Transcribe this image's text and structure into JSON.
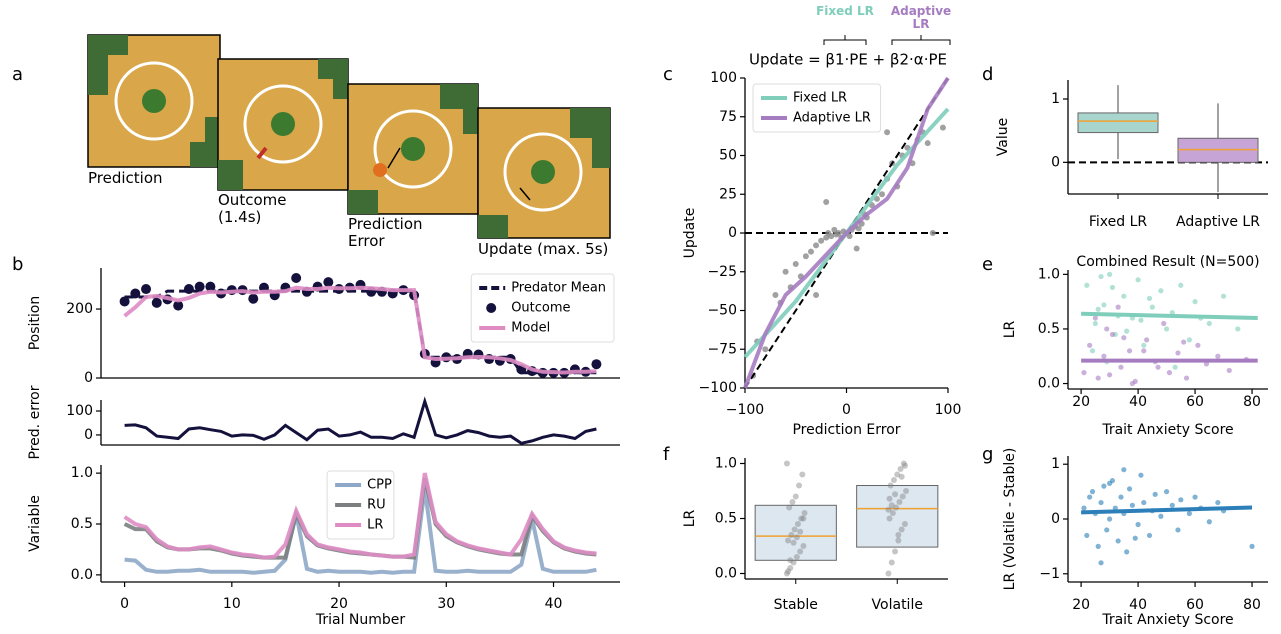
{
  "panel_labels": [
    "a",
    "b",
    "c",
    "d",
    "e",
    "f",
    "g"
  ],
  "task_images": [
    "Prediction",
    "Outcome (1.4s)",
    "Prediction Error",
    "Update (max. 5s)"
  ],
  "chart_data": [
    {
      "type": "line",
      "ylabel": "Position",
      "x": [
        0,
        1,
        2,
        3,
        4,
        5,
        6,
        7,
        8,
        9,
        10,
        11,
        12,
        13,
        14,
        15,
        16,
        17,
        18,
        19,
        20,
        21,
        22,
        23,
        24,
        25,
        26,
        27,
        28,
        29,
        30,
        31,
        32,
        33,
        34,
        35,
        36,
        37,
        38,
        39,
        40,
        41,
        42,
        43,
        44
      ],
      "xlim": [
        -2.2,
        46.2
      ],
      "ylim": [
        0,
        319
      ],
      "yticks": [
        0,
        200
      ],
      "legend": "upper right",
      "series": [
        {
          "name": "Predator Mean",
          "color": "#14123d",
          "dash": true,
          "values": [
            235,
            235,
            235,
            235,
            252,
            252,
            252,
            252,
            252,
            252,
            252,
            252,
            252,
            252,
            252,
            252,
            252,
            252,
            252,
            252,
            252,
            252,
            252,
            252,
            252,
            252,
            252,
            252,
            60,
            60,
            60,
            60,
            60,
            60,
            60,
            60,
            60,
            15,
            15,
            15,
            15,
            15,
            15,
            15,
            15
          ]
        },
        {
          "name": "Outcome",
          "color": "#14123d",
          "marker": "dot",
          "values": [
            222,
            245,
            258,
            218,
            228,
            210,
            258,
            265,
            265,
            245,
            255,
            255,
            230,
            262,
            240,
            262,
            290,
            250,
            265,
            278,
            258,
            262,
            270,
            250,
            250,
            245,
            255,
            240,
            70,
            45,
            60,
            55,
            70,
            68,
            55,
            50,
            55,
            25,
            20,
            15,
            15,
            15,
            25,
            18,
            40
          ]
        },
        {
          "name": "Model",
          "color": "#de8cc3",
          "values": [
            180,
            205,
            235,
            238,
            232,
            225,
            232,
            245,
            250,
            248,
            250,
            252,
            248,
            250,
            250,
            252,
            262,
            258,
            258,
            262,
            260,
            260,
            262,
            260,
            258,
            255,
            255,
            255,
            60,
            55,
            56,
            57,
            60,
            61,
            60,
            57,
            52,
            40,
            25,
            18,
            17,
            16,
            18,
            18,
            20
          ]
        }
      ]
    },
    {
      "type": "line",
      "ylabel": "Pred. error",
      "x": [
        0,
        1,
        2,
        3,
        4,
        5,
        6,
        7,
        8,
        9,
        10,
        11,
        12,
        13,
        14,
        15,
        16,
        17,
        18,
        19,
        20,
        21,
        22,
        23,
        24,
        25,
        26,
        27,
        28,
        29,
        30,
        31,
        32,
        33,
        34,
        35,
        36,
        37,
        38,
        39,
        40,
        41,
        42,
        43,
        44
      ],
      "xlim": [
        -2.2,
        46.2
      ],
      "ylim": [
        -42,
        146
      ],
      "yticks": [
        0,
        100
      ],
      "color": "#14123d",
      "values": [
        40,
        42,
        30,
        -5,
        -10,
        -15,
        25,
        30,
        22,
        15,
        -5,
        0,
        -2,
        -18,
        0,
        40,
        10,
        -20,
        20,
        25,
        -5,
        0,
        12,
        -10,
        -10,
        -15,
        5,
        -10,
        140,
        0,
        -12,
        0,
        18,
        10,
        -5,
        -10,
        -5,
        -35,
        -25,
        -10,
        0,
        -5,
        -15,
        15,
        25
      ]
    },
    {
      "type": "line",
      "ylabel": "Variable",
      "xlabel": "Trial Number",
      "x": [
        0,
        1,
        2,
        3,
        4,
        5,
        6,
        7,
        8,
        9,
        10,
        11,
        12,
        13,
        14,
        15,
        16,
        17,
        18,
        19,
        20,
        21,
        22,
        23,
        24,
        25,
        26,
        27,
        28,
        29,
        30,
        31,
        32,
        33,
        34,
        35,
        36,
        37,
        38,
        39,
        40,
        41,
        42,
        43,
        44
      ],
      "xlim": [
        -2.2,
        46.2
      ],
      "ylim": [
        -0.07,
        1.08
      ],
      "xticks": [
        0,
        10,
        20,
        30,
        40
      ],
      "yticks": [
        {
          "value": 0,
          "label": "0.0"
        },
        {
          "value": 0.5,
          "label": "0.5"
        },
        {
          "value": 1,
          "label": "1.0"
        }
      ],
      "legend": "upper center",
      "series": [
        {
          "name": "CPP",
          "color": "#8fa8c8",
          "values": [
            0.15,
            0.14,
            0.05,
            0.03,
            0.03,
            0.04,
            0.04,
            0.05,
            0.03,
            0.03,
            0.03,
            0.03,
            0.02,
            0.03,
            0.04,
            0.15,
            0.6,
            0.06,
            0.03,
            0.04,
            0.03,
            0.03,
            0.03,
            0.02,
            0.03,
            0.02,
            0.03,
            0.03,
            0.85,
            0.04,
            0.03,
            0.03,
            0.04,
            0.03,
            0.03,
            0.03,
            0.03,
            0.1,
            0.55,
            0.06,
            0.03,
            0.03,
            0.03,
            0.03,
            0.05
          ]
        },
        {
          "name": "RU",
          "color": "#7b7f7f",
          "values": [
            0.5,
            0.45,
            0.45,
            0.33,
            0.27,
            0.25,
            0.25,
            0.26,
            0.26,
            0.24,
            0.21,
            0.19,
            0.18,
            0.17,
            0.17,
            0.17,
            0.6,
            0.38,
            0.29,
            0.26,
            0.24,
            0.22,
            0.21,
            0.2,
            0.19,
            0.18,
            0.18,
            0.17,
            0.95,
            0.5,
            0.38,
            0.32,
            0.28,
            0.25,
            0.23,
            0.21,
            0.2,
            0.2,
            0.58,
            0.43,
            0.32,
            0.26,
            0.23,
            0.21,
            0.2
          ]
        },
        {
          "name": "LR",
          "color": "#de8cc3",
          "values": [
            0.57,
            0.5,
            0.47,
            0.35,
            0.28,
            0.25,
            0.25,
            0.27,
            0.28,
            0.25,
            0.22,
            0.2,
            0.19,
            0.17,
            0.18,
            0.3,
            0.63,
            0.4,
            0.3,
            0.27,
            0.25,
            0.23,
            0.22,
            0.2,
            0.19,
            0.18,
            0.18,
            0.2,
            1.0,
            0.52,
            0.4,
            0.33,
            0.29,
            0.26,
            0.24,
            0.22,
            0.2,
            0.35,
            0.6,
            0.45,
            0.33,
            0.27,
            0.24,
            0.22,
            0.21
          ]
        }
      ]
    },
    {
      "type": "scatter_fit",
      "xlabel": "Prediction Error",
      "ylabel": "Update",
      "equation": "Update = β1·PE + β2·α·PE",
      "equation_terms": [
        "Fixed LR",
        "Adaptive LR"
      ],
      "xlim": [
        -100,
        100
      ],
      "ylim": [
        -100,
        100
      ],
      "xticks": [
        {
          "value": -100,
          "label": "−100"
        },
        0,
        100
      ],
      "yticks": [
        {
          "value": -100,
          "label": "−100"
        },
        {
          "value": -75,
          "label": "−75"
        },
        {
          "value": -50,
          "label": "−50"
        },
        {
          "value": -25,
          "label": "−25"
        },
        0,
        25,
        50,
        75,
        100
      ],
      "identity_line": true,
      "hlines": [
        0
      ],
      "point_color": "#8a8a8a",
      "legend": "upper left",
      "x": [
        -92,
        -88,
        -80,
        -70,
        -65,
        -60,
        -55,
        -50,
        -45,
        -40,
        -35,
        -30,
        -25,
        -20,
        -18,
        -15,
        -12,
        -10,
        -8,
        -5,
        -3,
        0,
        3,
        5,
        8,
        10,
        12,
        15,
        18,
        20,
        25,
        30,
        35,
        40,
        45,
        50,
        55,
        60,
        65,
        70,
        75,
        80,
        85,
        95,
        40,
        -30,
        -20,
        10
      ],
      "values": [
        -92,
        -70,
        -75,
        -40,
        -45,
        -25,
        -35,
        -20,
        -28,
        -15,
        -12,
        -8,
        -5,
        -3,
        0,
        -2,
        2,
        -1,
        0,
        -3,
        1,
        0,
        -2,
        2,
        4,
        8,
        3,
        6,
        12,
        10,
        18,
        22,
        25,
        35,
        45,
        30,
        50,
        55,
        45,
        60,
        65,
        58,
        0,
        68,
        65,
        -40,
        20,
        -10
      ],
      "series": [
        {
          "name": "Fixed LR",
          "color": "#7fcdbb",
          "x": [
            -100,
            -75,
            -50,
            -25,
            0,
            25,
            50,
            75,
            100
          ],
          "values": [
            -80,
            -62,
            -44,
            -22,
            0,
            22,
            44,
            62,
            80
          ]
        },
        {
          "name": "Adaptive LR",
          "color": "#a67cc1",
          "x": [
            -100,
            -80,
            -60,
            -40,
            -20,
            0,
            20,
            40,
            60,
            80,
            100
          ],
          "values": [
            -100,
            -65,
            -40,
            -28,
            -14,
            0,
            12,
            22,
            42,
            80,
            100
          ]
        }
      ]
    },
    {
      "type": "box",
      "ylabel": "Value",
      "categories": [
        "Fixed LR",
        "Adaptive LR"
      ],
      "ylim": [
        -0.5,
        1.3
      ],
      "yticks": [
        0,
        1
      ],
      "hlines": [
        0
      ],
      "colors": [
        "#a8d5ce",
        "#c6a5d6"
      ],
      "median_color": "#f0a030",
      "boxes": [
        {
          "whislo": 0.05,
          "q1": 0.47,
          "median": 0.65,
          "q3": 0.78,
          "whishi": 1.22
        },
        {
          "whislo": -0.47,
          "q1": 0.0,
          "median": 0.2,
          "q3": 0.38,
          "whishi": 0.93
        }
      ]
    },
    {
      "type": "scatter",
      "title": "Combined Result (N=500)",
      "xlabel": "Trait Anxiety Score",
      "ylabel": "LR",
      "xlim": [
        15.4,
        85.6
      ],
      "ylim": [
        -0.05,
        1.04
      ],
      "xticks": [
        20,
        40,
        60,
        80
      ],
      "yticks": [
        {
          "value": 0,
          "label": "0.0"
        },
        {
          "value": 0.5,
          "label": "0.5"
        },
        {
          "value": 1,
          "label": "1.0"
        }
      ],
      "series": [
        {
          "color": "#7fcdbb",
          "x": [
            22,
            25,
            28,
            30,
            32,
            35,
            38,
            40,
            42,
            45,
            48,
            50,
            52,
            55,
            58,
            60,
            62,
            65,
            70,
            75,
            24,
            27,
            33,
            36,
            44,
            29,
            31,
            26,
            41,
            53
          ],
          "values": [
            0.9,
            0.55,
            0.72,
            1.0,
            0.45,
            0.8,
            0.6,
            0.95,
            0.35,
            0.7,
            0.85,
            0.5,
            0.65,
            0.9,
            0.4,
            0.75,
            0.6,
            0.55,
            0.8,
            0.5,
            0.3,
            0.98,
            0.62,
            0.48,
            0.78,
            0.2,
            0.88,
            0.68,
            0.58,
            0.15
          ],
          "fit_x": [
            20,
            82
          ],
          "fit_values": [
            0.64,
            0.6
          ]
        },
        {
          "color": "#a67cc1",
          "x": [
            21,
            23,
            26,
            28,
            31,
            34,
            37,
            39,
            43,
            46,
            49,
            51,
            54,
            57,
            61,
            64,
            68,
            72,
            78,
            25,
            30,
            35,
            42,
            47,
            33,
            29,
            38,
            56
          ],
          "values": [
            0.1,
            0.35,
            0.05,
            0.25,
            0.45,
            0.15,
            0.3,
            0.02,
            0.4,
            0.2,
            0.55,
            0.1,
            0.28,
            0.05,
            0.35,
            0.18,
            0.25,
            0.12,
            0.22,
            0.6,
            0.08,
            0.42,
            0.3,
            0.15,
            0.7,
            0.5,
            0.0,
            0.38
          ],
          "fit_x": [
            20,
            82
          ],
          "fit_values": [
            0.21,
            0.21
          ]
        }
      ]
    },
    {
      "type": "box_strip",
      "ylabel": "LR",
      "categories": [
        "Stable",
        "Volatile"
      ],
      "ylim": [
        -0.05,
        1.05
      ],
      "yticks": [
        {
          "value": 0,
          "label": "0.0"
        },
        {
          "value": 0.5,
          "label": "0.5"
        },
        {
          "value": 1,
          "label": "1.0"
        }
      ],
      "colors": [
        "#dce7f0",
        "#dce7f0"
      ],
      "median_color": "#f0a030",
      "point_color": "#808080",
      "boxes": [
        {
          "q1": 0.12,
          "median": 0.34,
          "q3": 0.62
        },
        {
          "q1": 0.24,
          "median": 0.59,
          "q3": 0.8
        }
      ],
      "points": [
        [
          0.0,
          0.05,
          0.1,
          0.15,
          0.2,
          0.25,
          0.3,
          0.35,
          0.4,
          0.45,
          0.5,
          0.55,
          0.6,
          0.65,
          0.7,
          0.8,
          0.9,
          1.0,
          0.12,
          0.28,
          0.33,
          0.38,
          0.5,
          0.02
        ],
        [
          0.0,
          0.1,
          0.2,
          0.3,
          0.4,
          0.45,
          0.5,
          0.55,
          0.6,
          0.65,
          0.7,
          0.75,
          0.8,
          0.85,
          0.9,
          0.95,
          1.0,
          0.58,
          0.62,
          0.72,
          0.35,
          0.88,
          0.98,
          0.68
        ]
      ]
    },
    {
      "type": "scatter",
      "xlabel": "Trait Anxiety Score",
      "ylabel": "LR (Volatile - Stable)",
      "xlim": [
        15.4,
        85.6
      ],
      "ylim": [
        -1.15,
        1.15
      ],
      "xticks": [
        20,
        40,
        60,
        80
      ],
      "yticks": [
        {
          "value": -1,
          "label": "−1"
        },
        0,
        1
      ],
      "series": [
        {
          "color": "#2c7fb8",
          "x": [
            21,
            22,
            24,
            25,
            26,
            27,
            28,
            29,
            30,
            31,
            32,
            33,
            34,
            35,
            36,
            37,
            38,
            40,
            41,
            42,
            44,
            45,
            46,
            48,
            50,
            52,
            54,
            55,
            58,
            60,
            62,
            65,
            68,
            70,
            80,
            23,
            27,
            30,
            35,
            39
          ],
          "values": [
            0.2,
            -0.3,
            0.5,
            0.1,
            -0.5,
            0.3,
            0.6,
            -0.2,
            0.0,
            0.7,
            0.2,
            -0.4,
            0.4,
            0.1,
            -0.6,
            0.55,
            0.25,
            -0.1,
            0.8,
            0.3,
            -0.3,
            0.15,
            0.45,
            0.05,
            0.5,
            0.25,
            -0.2,
            0.35,
            0.1,
            0.4,
            0.2,
            -0.05,
            0.3,
            0.15,
            -0.5,
            0.4,
            -0.8,
            0.65,
            0.9,
            -0.35
          ],
          "fit_x": [
            20,
            80
          ],
          "fit_values": [
            0.12,
            0.21
          ]
        }
      ]
    }
  ]
}
